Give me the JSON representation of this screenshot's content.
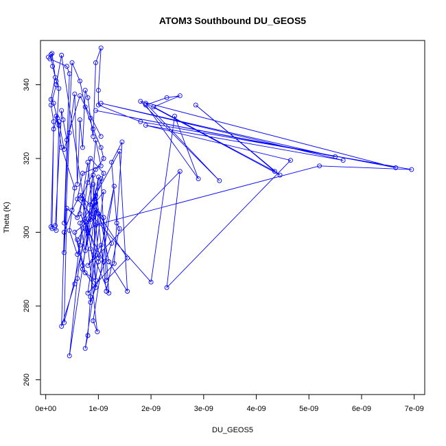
{
  "chart_data": {
    "type": "scatter",
    "title": "ATOM3 Southbound DU_GEOS5",
    "xlabel": "DU_GEOS5",
    "ylabel": "Theta (K)",
    "xlim": [
      -1e-10,
      7.2e-09
    ],
    "ylim": [
      256,
      352
    ],
    "x_ticks": [
      0,
      1e-09,
      2e-09,
      3e-09,
      4e-09,
      5e-09,
      6e-09,
      7e-09
    ],
    "x_tick_labels": [
      "0e+00",
      "1e-09",
      "2e-09",
      "3e-09",
      "4e-09",
      "5e-09",
      "6e-09",
      "7e-09"
    ],
    "y_ticks": [
      260,
      280,
      300,
      320,
      340
    ],
    "y_tick_labels": [
      "260",
      "280",
      "300",
      "320",
      "340"
    ],
    "grid": false,
    "connected": true,
    "series": [
      {
        "color": "#0000ff",
        "points": [
          [
            5e-11,
            347.5
          ],
          [
            1e-10,
            348.2
          ],
          [
            1.3e-10,
            345.0
          ],
          [
            2e-10,
            341.0
          ],
          [
            2.5e-10,
            339.0
          ],
          [
            2.2e-10,
            331.0
          ],
          [
            1.5e-10,
            328.0
          ],
          [
            1e-10,
            301.5
          ],
          [
            1.8e-10,
            301.8
          ],
          [
            3e-10,
            333.0
          ],
          [
            3.3e-10,
            330.5
          ],
          [
            4e-10,
            325.0
          ],
          [
            3.5e-10,
            294.5
          ],
          [
            4.5e-10,
            327.0
          ],
          [
            5.5e-10,
            337.5
          ],
          [
            6e-10,
            313.0
          ],
          [
            6.5e-10,
            330.5
          ],
          [
            7e-10,
            323.0
          ],
          [
            7.5e-10,
            338.5
          ],
          [
            8e-10,
            336.5
          ],
          [
            8.5e-10,
            331.0
          ],
          [
            9e-10,
            326.0
          ],
          [
            9.5e-10,
            346.0
          ],
          [
            1.05e-09,
            350.0
          ],
          [
            1e-09,
            338.5
          ],
          [
            1e-09,
            334.5
          ],
          [
            1.8e-09,
            330.0
          ],
          [
            6.95e-09,
            317.0
          ],
          [
            5.2e-09,
            318.0
          ],
          [
            9.5e-10,
            302.0
          ],
          [
            8e-10,
            300.5
          ],
          [
            7e-10,
            290.0
          ],
          [
            9.5e-10,
            285.0
          ],
          [
            9e-10,
            313.0
          ],
          [
            1e-09,
            293.0
          ],
          [
            7.5e-10,
            303.0
          ],
          [
            9.5e-10,
            308.0
          ],
          [
            8.5e-10,
            295.5
          ],
          [
            1.2e-09,
            283.5
          ],
          [
            1.1e-09,
            304.0
          ],
          [
            6.5e-10,
            310.0
          ],
          [
            5e-10,
            306.0
          ],
          [
            3.5e-10,
            300.0
          ],
          [
            3e-10,
            274.5
          ],
          [
            5.5e-10,
            286.0
          ],
          [
            8.5e-10,
            320.0
          ],
          [
            1.1e-09,
            316.0
          ],
          [
            7.5e-10,
            301.0
          ],
          [
            6e-10,
            287.5
          ],
          [
            4.5e-10,
            266.5
          ],
          [
            8e-10,
            300.0
          ],
          [
            9.5e-10,
            325.0
          ],
          [
            1.05e-09,
            318.0
          ],
          [
            7e-10,
            316.0
          ],
          [
            6e-10,
            309.0
          ],
          [
            2e-09,
            286.5
          ],
          [
            2.45e-09,
            331.5
          ],
          [
            2.9e-09,
            314.5
          ],
          [
            1.9e-09,
            334.5
          ],
          [
            2.3e-09,
            336.5
          ],
          [
            2.55e-09,
            337.0
          ],
          [
            2.05e-09,
            334.0
          ],
          [
            4.35e-09,
            316.5
          ],
          [
            2.85e-09,
            334.5
          ],
          [
            4.45e-09,
            315.5
          ],
          [
            1.9e-09,
            335.0
          ],
          [
            3.3e-09,
            314.0
          ],
          [
            1.8e-09,
            335.5
          ],
          [
            6.65e-09,
            317.5
          ],
          [
            9.5e-10,
            333.0
          ],
          [
            5.5e-09,
            320.5
          ],
          [
            1.05e-09,
            335.0
          ],
          [
            5.65e-09,
            319.5
          ],
          [
            1.9e-09,
            329.0
          ],
          [
            4.65e-09,
            319.5
          ],
          [
            2.3e-09,
            285.0
          ],
          [
            2.55e-09,
            316.5
          ],
          [
            8e-10,
            291.0
          ],
          [
            1.05e-09,
            296.5
          ],
          [
            1.1e-09,
            292.0
          ],
          [
            6.5e-10,
            305.0
          ],
          [
            8e-10,
            319.0
          ],
          [
            9e-10,
            304.0
          ],
          [
            5.5e-10,
            300.0
          ],
          [
            7e-10,
            291.0
          ],
          [
            1e-09,
            315.0
          ],
          [
            8.5e-10,
            281.0
          ],
          [
            1.25e-09,
            297.0
          ],
          [
            9.5e-10,
            306.0
          ],
          [
            7.5e-10,
            295.0
          ],
          [
            6.5e-10,
            302.5
          ],
          [
            1.1e-09,
            311.0
          ],
          [
            8.5e-10,
            282.5
          ],
          [
            8e-10,
            272.0
          ],
          [
            7.5e-10,
            268.5
          ],
          [
            1e-09,
            292.0
          ],
          [
            1.3e-09,
            312.5
          ],
          [
            9e-10,
            276.0
          ],
          [
            9.8e-10,
            273.0
          ],
          [
            7e-10,
            309.0
          ],
          [
            6e-10,
            304.0
          ],
          [
            4e-10,
            306.5
          ],
          [
            3.5e-10,
            275.5
          ],
          [
            9.5e-10,
            310.0
          ],
          [
            1.2e-09,
            292.0
          ],
          [
            1.55e-09,
            284.0
          ],
          [
            1.4e-09,
            322.0
          ],
          [
            8.5e-10,
            307.5
          ],
          [
            1.05e-09,
            314.5
          ],
          [
            1.15e-09,
            287.0
          ],
          [
            1.55e-09,
            293.0
          ],
          [
            1e-09,
            305.0
          ],
          [
            8e-10,
            283.5
          ],
          [
            1.3e-09,
            291.5
          ],
          [
            1.45e-09,
            324.5
          ],
          [
            1.25e-09,
            319.0
          ],
          [
            1.35e-09,
            302.5
          ],
          [
            1.4e-09,
            301.0
          ],
          [
            1.15e-09,
            284.0
          ],
          [
            9e-10,
            315.5
          ],
          [
            6.5e-10,
            296.5
          ],
          [
            6e-10,
            294.0
          ],
          [
            4.5e-10,
            300.5
          ],
          [
            5.5e-10,
            312.0
          ],
          [
            3e-10,
            323.0
          ],
          [
            2e-10,
            331.5
          ],
          [
            2.5e-10,
            329.0
          ],
          [
            1.5e-10,
            335.0
          ],
          [
            1e-10,
            336.0
          ],
          [
            1.8e-10,
            342.0
          ],
          [
            1.2e-10,
            348.5
          ],
          [
            8e-11,
            347.0
          ],
          [
            4e-10,
            345.0
          ],
          [
            4.5e-10,
            343.0
          ],
          [
            3.5e-10,
            302.5
          ],
          [
            5e-10,
            346.0
          ],
          [
            6.5e-10,
            341.0
          ],
          [
            7.5e-10,
            334.0
          ],
          [
            9e-10,
            328.0
          ],
          [
            1.05e-09,
            323.0
          ],
          [
            1.1e-09,
            320.0
          ],
          [
            9.5e-10,
            317.0
          ],
          [
            8e-10,
            313.5
          ],
          [
            7e-10,
            310.0
          ],
          [
            8.5e-10,
            303.5
          ],
          [
            6e-10,
            298.0
          ],
          [
            7.5e-10,
            289.0
          ],
          [
            9.5e-10,
            287.0
          ],
          [
            3e-10,
            348.0
          ],
          [
            2e-10,
            340.0
          ],
          [
            1e-10,
            334.5
          ],
          [
            1.5e-10,
            330.0
          ],
          [
            1.2e-10,
            301.0
          ],
          [
            2e-10,
            300.5
          ],
          [
            2.5e-10,
            330.0
          ],
          [
            3.5e-10,
            322.5
          ],
          [
            6.5e-10,
            337.0
          ],
          [
            1.05e-09,
            326.0
          ]
        ]
      }
    ]
  }
}
